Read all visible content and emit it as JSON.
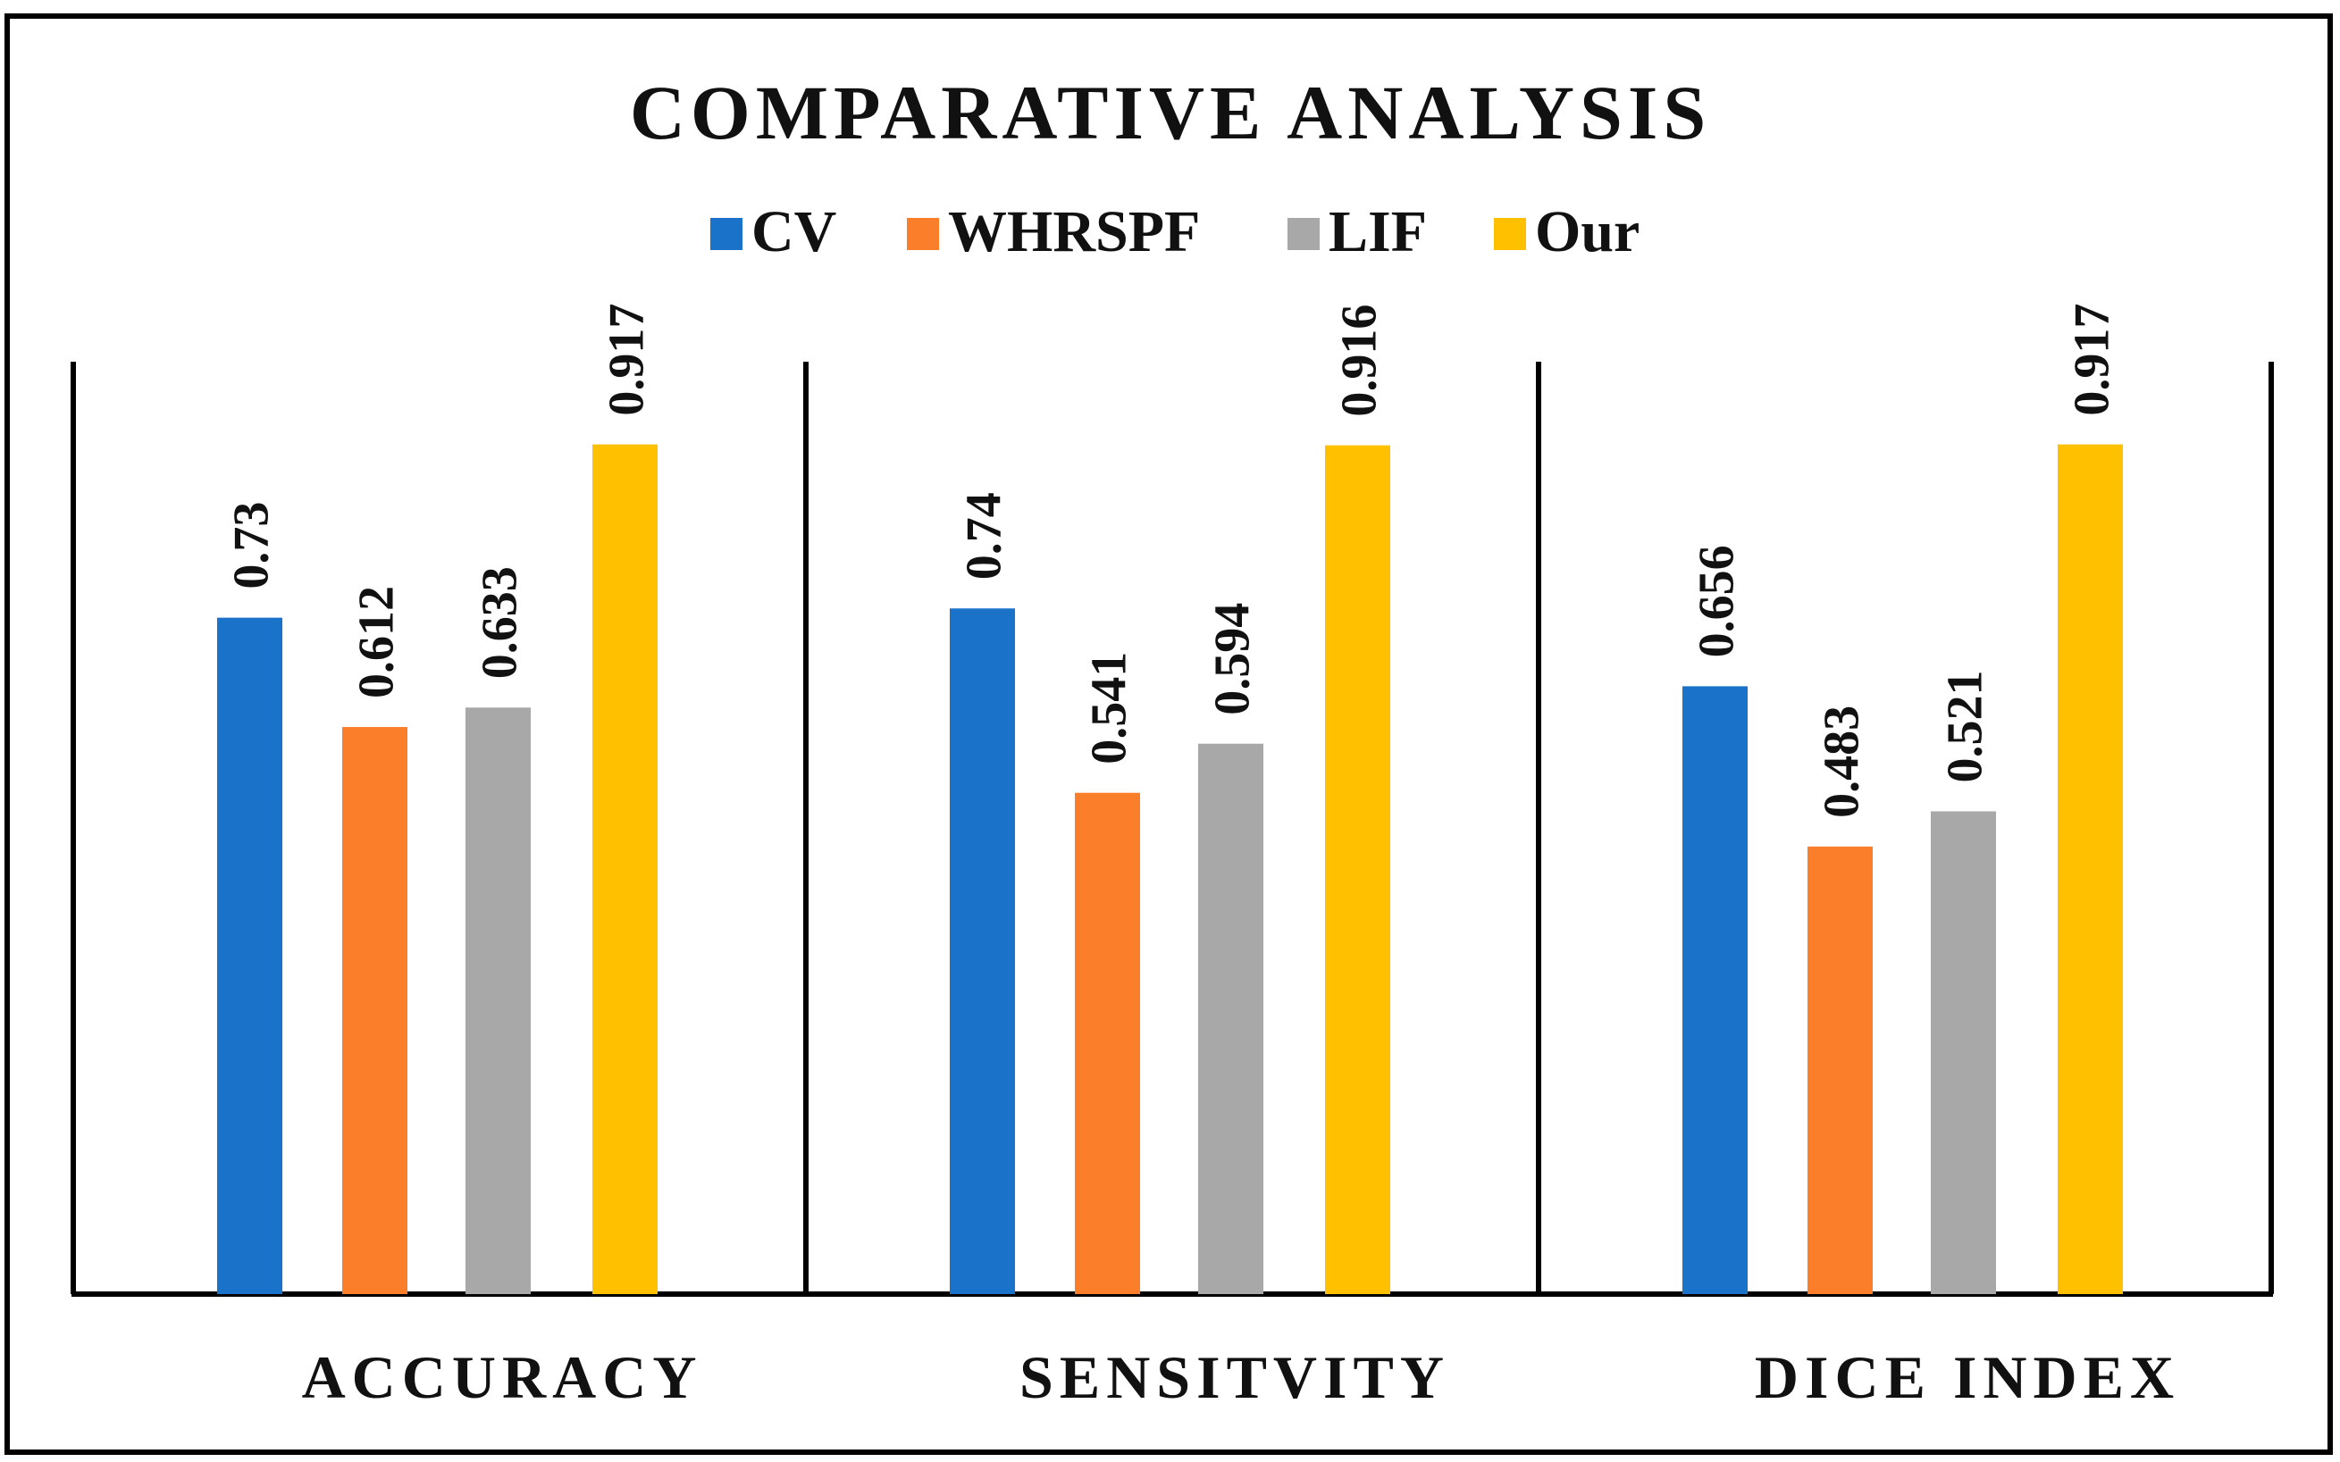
{
  "chart_data": {
    "type": "bar",
    "title": "COMPARATIVE ANALYSIS",
    "categories": [
      "ACCURACY",
      "SENSITVITY",
      "DICE INDEX"
    ],
    "series": [
      {
        "name": "CV",
        "color": "#1a73c8",
        "values": [
          0.73,
          0.74,
          0.656
        ],
        "labels": [
          "0.73",
          "0.74",
          "0.656"
        ]
      },
      {
        "name": "WHRSPF",
        "color": "#fb7e2a",
        "values": [
          0.612,
          0.541,
          0.483
        ],
        "labels": [
          "0.612",
          "0.541",
          "0.483"
        ]
      },
      {
        "name": "LIF",
        "color": "#a8a8a8",
        "values": [
          0.633,
          0.594,
          0.521
        ],
        "labels": [
          "0.633",
          "0.594",
          "0.521"
        ]
      },
      {
        "name": "Our",
        "color": "#ffc000",
        "values": [
          0.917,
          0.916,
          0.917
        ],
        "labels": [
          "0.917",
          "0.916",
          "0.917"
        ]
      }
    ],
    "xlabel": "",
    "ylabel": "",
    "ylim": [
      0,
      1
    ],
    "grid": false,
    "legend": "top-center"
  }
}
